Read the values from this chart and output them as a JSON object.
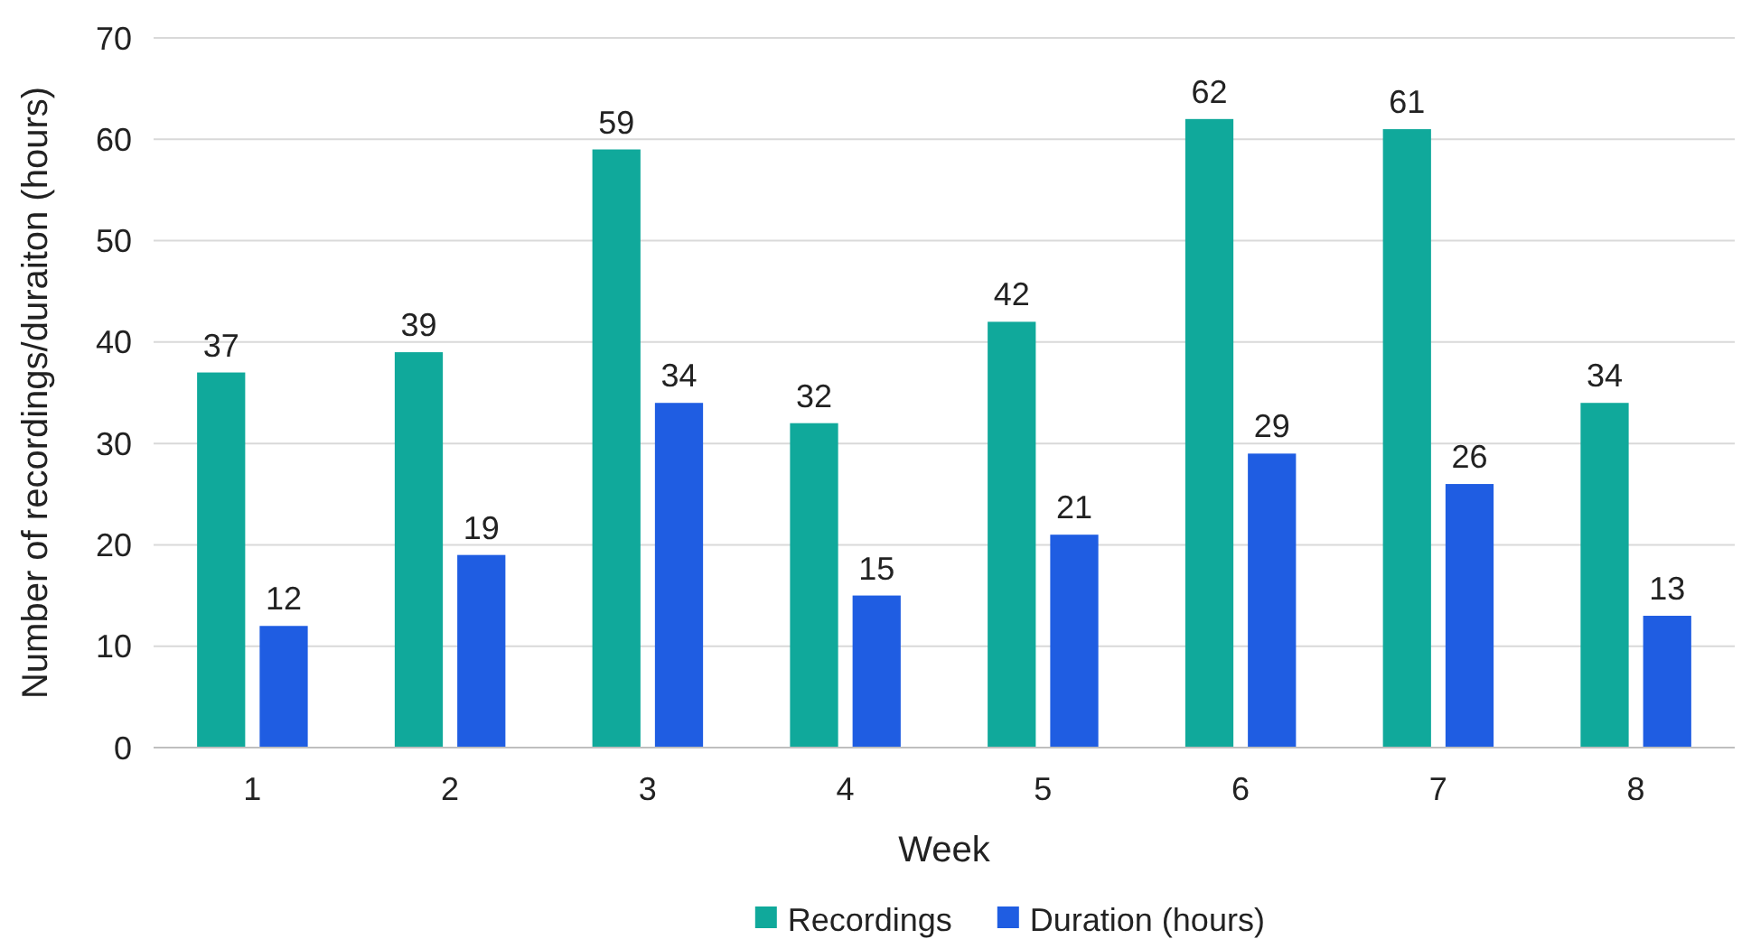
{
  "chart_data": {
    "type": "bar",
    "xlabel": "Week",
    "ylabel": "Number of recordings/duraiton (hours)",
    "categories": [
      "1",
      "2",
      "3",
      "4",
      "5",
      "6",
      "7",
      "8"
    ],
    "series": [
      {
        "name": "Recordings",
        "color": "#10a99b",
        "values": [
          37,
          39,
          59,
          32,
          42,
          62,
          61,
          34
        ]
      },
      {
        "name": "Duration (hours)",
        "color": "#1f5de2",
        "values": [
          12,
          19,
          34,
          15,
          21,
          29,
          26,
          13
        ]
      }
    ],
    "ylim": [
      0,
      70
    ],
    "yticks": [
      0,
      10,
      20,
      30,
      40,
      50,
      60,
      70
    ],
    "grid": "y",
    "legend": "bottom",
    "data_labels": true
  }
}
